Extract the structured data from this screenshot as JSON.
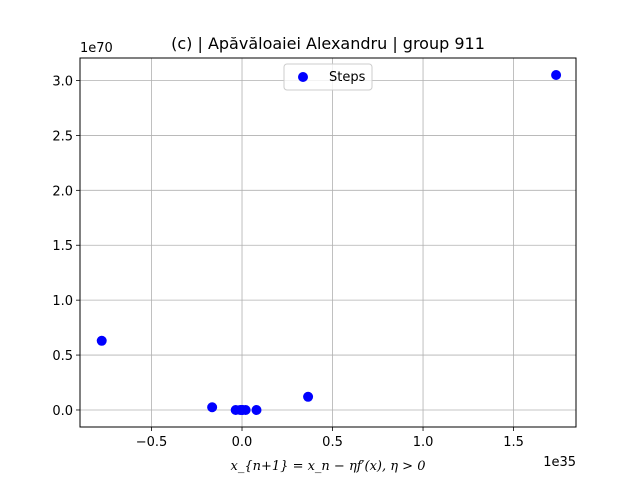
{
  "chart_data": {
    "type": "scatter",
    "title": "(c) | Apăvăloaiei Alexandru | group 911",
    "xlabel": "x_{n+1} = x_n − ηf′(x), η > 0",
    "ylabel": "",
    "x_offset_label": "1e35",
    "y_offset_label": "1e70",
    "xlim": [
      -0.895,
      1.845
    ],
    "ylim": [
      -0.155,
      3.205
    ],
    "x_ticks": [
      -0.5,
      0.0,
      0.5,
      1.0,
      1.5
    ],
    "x_tick_labels": [
      "−0.5",
      "0.0",
      "0.5",
      "1.0",
      "1.5"
    ],
    "y_ticks": [
      0.0,
      0.5,
      1.0,
      1.5,
      2.0,
      2.5,
      3.0
    ],
    "y_tick_labels": [
      "0.0",
      "0.5",
      "1.0",
      "1.5",
      "2.0",
      "2.5",
      "3.0"
    ],
    "grid": true,
    "legend_placement": "upper center",
    "series": [
      {
        "name": "Steps",
        "color": "#0000ff",
        "marker": "circle",
        "x": [
          0.0,
          0.003,
          -0.01,
          0.02,
          -0.035,
          0.08,
          -0.165,
          0.365,
          -0.775,
          1.735
        ],
        "y": [
          0.0,
          0.0,
          0.0,
          0.0,
          0.0,
          0.0,
          0.025,
          0.12,
          0.63,
          3.05
        ]
      }
    ]
  }
}
